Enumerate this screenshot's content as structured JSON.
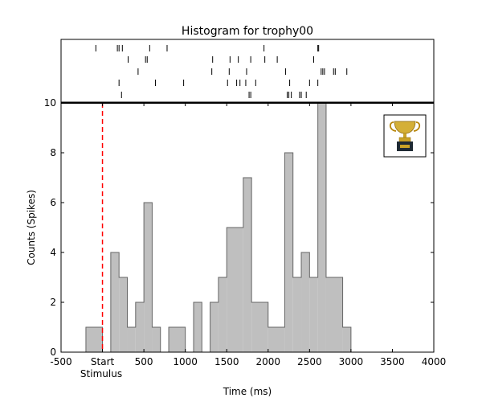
{
  "chart_data": {
    "type": "bar",
    "title": "Histogram for trophy00",
    "xlabel": "Time (ms)",
    "ylabel": "Counts (Spikes)",
    "xlim": [
      -500,
      4000
    ],
    "ylim": [
      0,
      10
    ],
    "x_ticks": [
      {
        "value": -500,
        "label": "-500"
      },
      {
        "value": 0,
        "label": "Start"
      },
      {
        "value": 500,
        "label": "500"
      },
      {
        "value": 1000,
        "label": "1000"
      },
      {
        "value": 1500,
        "label": "1500"
      },
      {
        "value": 2000,
        "label": "2000"
      },
      {
        "value": 2500,
        "label": "2500"
      },
      {
        "value": 3000,
        "label": "3000"
      },
      {
        "value": 3500,
        "label": "3500"
      },
      {
        "value": 4000,
        "label": "4000"
      }
    ],
    "y_ticks": [
      0,
      2,
      4,
      6,
      8,
      10
    ],
    "stimulus_label": "Stimulus",
    "stimulus_time": 0,
    "colors": {
      "bars": "#bfbfbf",
      "bar_edge": "#666666",
      "stimulus_line": "#ff0000"
    },
    "icon": "trophy-icon",
    "bins": [
      {
        "start": -200,
        "end": 0,
        "count": 1
      },
      {
        "start": 0,
        "end": 100,
        "count": 0
      },
      {
        "start": 100,
        "end": 200,
        "count": 4
      },
      {
        "start": 200,
        "end": 300,
        "count": 3
      },
      {
        "start": 300,
        "end": 400,
        "count": 1
      },
      {
        "start": 400,
        "end": 500,
        "count": 2
      },
      {
        "start": 500,
        "end": 600,
        "count": 6
      },
      {
        "start": 600,
        "end": 700,
        "count": 1
      },
      {
        "start": 700,
        "end": 800,
        "count": 0
      },
      {
        "start": 800,
        "end": 1000,
        "count": 1
      },
      {
        "start": 1000,
        "end": 1100,
        "count": 0
      },
      {
        "start": 1100,
        "end": 1200,
        "count": 2
      },
      {
        "start": 1200,
        "end": 1300,
        "count": 0
      },
      {
        "start": 1300,
        "end": 1400,
        "count": 2
      },
      {
        "start": 1400,
        "end": 1500,
        "count": 3
      },
      {
        "start": 1500,
        "end": 1700,
        "count": 5
      },
      {
        "start": 1700,
        "end": 1800,
        "count": 7
      },
      {
        "start": 1800,
        "end": 2000,
        "count": 2
      },
      {
        "start": 2000,
        "end": 2200,
        "count": 1
      },
      {
        "start": 2200,
        "end": 2300,
        "count": 8
      },
      {
        "start": 2300,
        "end": 2400,
        "count": 3
      },
      {
        "start": 2400,
        "end": 2500,
        "count": 4
      },
      {
        "start": 2500,
        "end": 2600,
        "count": 3
      },
      {
        "start": 2600,
        "end": 2700,
        "count": 10
      },
      {
        "start": 2700,
        "end": 2900,
        "count": 3
      },
      {
        "start": 2900,
        "end": 3000,
        "count": 1
      }
    ],
    "raster_trials": [
      [
        -80,
        180,
        200,
        240,
        570,
        780,
        1950,
        2600,
        2610
      ],
      [
        310,
        520,
        540,
        1330,
        1540,
        1640,
        1790,
        1960,
        2110,
        2550
      ],
      [
        430,
        1320,
        1530,
        1740,
        2210,
        2640,
        2660,
        2680,
        2790,
        2810,
        2950
      ],
      [
        200,
        640,
        980,
        1510,
        1620,
        1660,
        1730,
        1850,
        2260,
        2500,
        2600
      ],
      [
        230,
        1770,
        1790,
        2230,
        2250,
        2280,
        2380,
        2400,
        2460
      ]
    ]
  }
}
